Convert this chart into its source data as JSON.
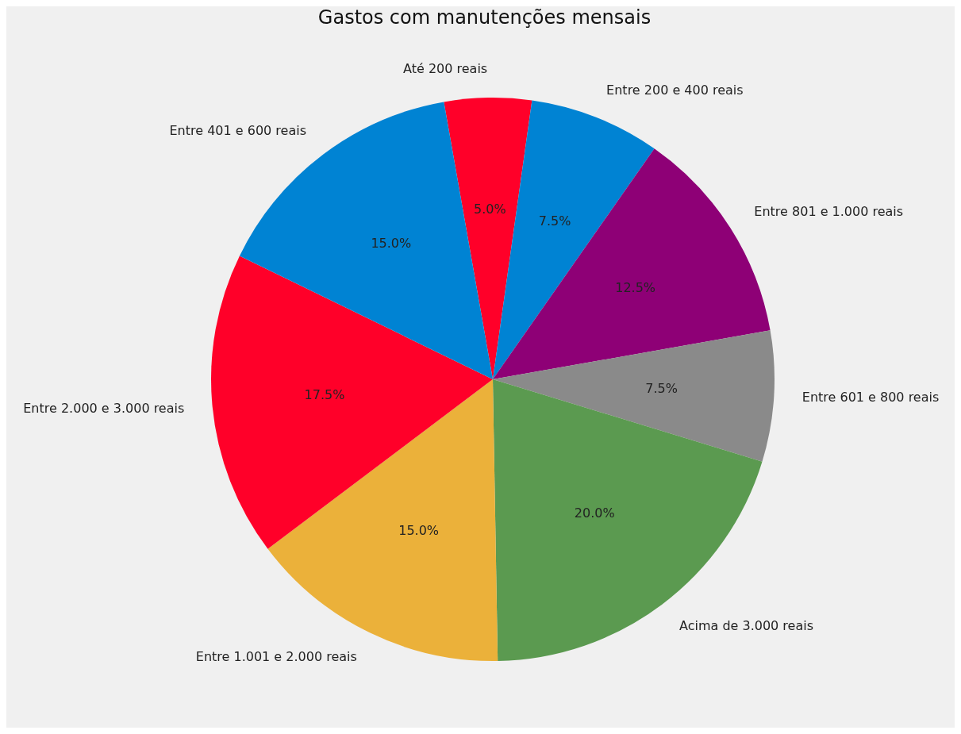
{
  "chart_data": {
    "type": "pie",
    "title": "Gastos com manutenções mensais",
    "categories": [
      "Até 200 reais",
      "Entre 200 e 400 reais",
      "Entre 801 e 1.000 reais",
      "Entre 601 e 800 reais",
      "Acima de 3.000 reais",
      "Entre 1.001 e 2.000 reais",
      "Entre 2.000 e 3.000 reais",
      "Entre 401 e 600 reais"
    ],
    "values": [
      5,
      7.5,
      12.5,
      7.5,
      20,
      15,
      17.5,
      15
    ],
    "value_labels": [
      "5.0%",
      "7.5%",
      "12.5%",
      "7.5%",
      "20.0%",
      "15.0%",
      "17.5%",
      "15.0%"
    ],
    "colors": [
      "#ff0029",
      "#0083d3",
      "#8e0076",
      "#8a8a8a",
      "#5b9a50",
      "#ebb13a",
      "#ff0029",
      "#0083d3"
    ],
    "legend": false
  }
}
